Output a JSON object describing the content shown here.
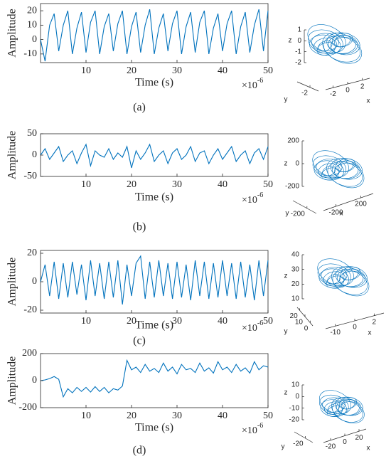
{
  "chart_data": [
    {
      "type": "line",
      "panel_label": "(a)",
      "ylabel": "Amplitude",
      "xlabel": "Time (s)",
      "x_scale_label": "×10",
      "x_scale_exponent": "-6",
      "color": "#0072bd",
      "x": [
        0,
        1,
        2,
        3,
        4,
        5,
        6,
        7,
        8,
        9,
        10,
        11,
        12,
        13,
        14,
        15,
        16,
        17,
        18,
        19,
        20,
        21,
        22,
        23,
        24,
        25,
        26,
        27,
        28,
        29,
        30,
        31,
        32,
        33,
        34,
        35,
        36,
        37,
        38,
        39,
        40,
        41,
        42,
        43,
        44,
        45,
        46,
        47,
        48,
        49,
        50
      ],
      "values": [
        0,
        -15,
        10,
        18,
        -8,
        10,
        20,
        -10,
        8,
        19,
        -9,
        12,
        20,
        -10,
        9,
        18,
        -8,
        11,
        20,
        -10,
        9,
        19,
        -9,
        10,
        21,
        -10,
        8,
        18,
        -8,
        11,
        20,
        -10,
        9,
        19,
        -9,
        12,
        20,
        -10,
        8,
        18,
        -8,
        11,
        20,
        -10,
        9,
        19,
        -9,
        10,
        21,
        -8,
        20
      ],
      "xlim": [
        0,
        50
      ],
      "xticks": [
        10,
        20,
        30,
        40,
        50
      ],
      "ylim": [
        -16,
        25
      ],
      "yticks": [
        20,
        10,
        0,
        -10
      ],
      "attractor": {
        "xlabel": "x",
        "ylabel": "y",
        "zlabel": "z",
        "xticks": [
          -2,
          0,
          2
        ],
        "yticks": [
          -2
        ],
        "zticks": [
          1,
          0,
          -1,
          -2
        ]
      }
    },
    {
      "type": "line",
      "panel_label": "(b)",
      "ylabel": "Amplitude",
      "xlabel": "Time (s)",
      "x_scale_label": "×10",
      "x_scale_exponent": "-6",
      "color": "#0072bd",
      "x": [
        0,
        1,
        2,
        3,
        4,
        5,
        6,
        7,
        8,
        9,
        10,
        11,
        12,
        13,
        14,
        15,
        16,
        17,
        18,
        19,
        20,
        21,
        22,
        23,
        24,
        25,
        26,
        27,
        28,
        29,
        30,
        31,
        32,
        33,
        34,
        35,
        36,
        37,
        38,
        39,
        40,
        41,
        42,
        43,
        44,
        45,
        46,
        47,
        48,
        49,
        50
      ],
      "values": [
        0,
        15,
        -10,
        5,
        20,
        -15,
        0,
        10,
        -20,
        5,
        25,
        -25,
        10,
        0,
        -5,
        15,
        -10,
        5,
        -5,
        20,
        -30,
        10,
        -10,
        5,
        25,
        -15,
        0,
        10,
        -20,
        5,
        15,
        -10,
        0,
        20,
        -15,
        5,
        10,
        -20,
        0,
        15,
        -10,
        5,
        20,
        -15,
        0,
        10,
        -20,
        5,
        15,
        -10,
        20
      ],
      "xlim": [
        0,
        50
      ],
      "xticks": [
        10,
        20,
        30,
        40,
        50
      ],
      "ylim": [
        -50,
        50
      ],
      "yticks": [
        50,
        0,
        -50
      ],
      "attractor": {
        "xlabel": "x",
        "ylabel": "y",
        "zlabel": "z",
        "xticks": [
          -200,
          200
        ],
        "yticks": [
          -200
        ],
        "zticks": [
          200,
          0,
          -200
        ]
      }
    },
    {
      "type": "line",
      "panel_label": "(c)",
      "ylabel": "Amplitude",
      "xlabel": "Time (s)",
      "x_scale_label": "×10",
      "x_scale_exponent": "-6",
      "color": "#0072bd",
      "x": [
        0,
        1,
        2,
        3,
        4,
        5,
        6,
        7,
        8,
        9,
        10,
        11,
        12,
        13,
        14,
        15,
        16,
        17,
        18,
        19,
        20,
        21,
        22,
        23,
        24,
        25,
        26,
        27,
        28,
        29,
        30,
        31,
        32,
        33,
        34,
        35,
        36,
        37,
        38,
        39,
        40,
        41,
        42,
        43,
        44,
        45,
        46,
        47,
        48,
        49,
        50
      ],
      "values": [
        0,
        12,
        -10,
        14,
        -12,
        13,
        -11,
        14,
        -9,
        12,
        -13,
        15,
        -10,
        13,
        -12,
        14,
        -11,
        15,
        -16,
        12,
        -10,
        13,
        18,
        -12,
        14,
        -11,
        15,
        -10,
        13,
        -12,
        14,
        -11,
        12,
        -13,
        15,
        -10,
        14,
        -12,
        13,
        -11,
        15,
        -10,
        13,
        -12,
        14,
        -11,
        12,
        -13,
        15,
        -10,
        15
      ],
      "xlim": [
        0,
        50
      ],
      "xticks": [
        10,
        20,
        30,
        40,
        50
      ],
      "ylim": [
        -22,
        22
      ],
      "yticks": [
        20,
        0,
        -20
      ],
      "attractor": {
        "xlabel": "x",
        "ylabel": "y",
        "zlabel": "z",
        "xticks": [
          -10,
          0,
          2
        ],
        "yticks": [
          20,
          10,
          0
        ],
        "zticks": [
          40,
          30,
          20,
          10
        ]
      }
    },
    {
      "type": "line",
      "panel_label": "(d)",
      "ylabel": "Amplitude",
      "xlabel": "Time (s)",
      "x_scale_label": "×10",
      "x_scale_exponent": "-6",
      "color": "#0072bd",
      "x": [
        0,
        1,
        2,
        3,
        4,
        5,
        6,
        7,
        8,
        9,
        10,
        11,
        12,
        13,
        14,
        15,
        16,
        17,
        18,
        19,
        20,
        21,
        22,
        23,
        24,
        25,
        26,
        27,
        28,
        29,
        30,
        31,
        32,
        33,
        34,
        35,
        36,
        37,
        38,
        39,
        40,
        41,
        42,
        43,
        44,
        45,
        46,
        47,
        48,
        49,
        50
      ],
      "values": [
        0,
        5,
        15,
        30,
        10,
        -120,
        -60,
        -90,
        -50,
        -80,
        -50,
        -85,
        -45,
        -80,
        -50,
        -90,
        -60,
        -70,
        -40,
        150,
        80,
        100,
        60,
        120,
        70,
        90,
        60,
        130,
        70,
        100,
        50,
        120,
        80,
        90,
        60,
        130,
        70,
        95,
        55,
        140,
        80,
        100,
        60,
        120,
        70,
        95,
        55,
        140,
        80,
        110,
        100
      ],
      "xlim": [
        0,
        50
      ],
      "xticks": [
        10,
        20,
        30,
        40,
        50
      ],
      "ylim": [
        -200,
        200
      ],
      "yticks": [
        200,
        0,
        -200
      ],
      "attractor": {
        "xlabel": "x",
        "ylabel": "y",
        "zlabel": "z",
        "xticks": [
          -20,
          0,
          20
        ],
        "yticks": [
          -20
        ],
        "zticks": [
          10,
          0,
          -10,
          -20
        ]
      }
    }
  ]
}
